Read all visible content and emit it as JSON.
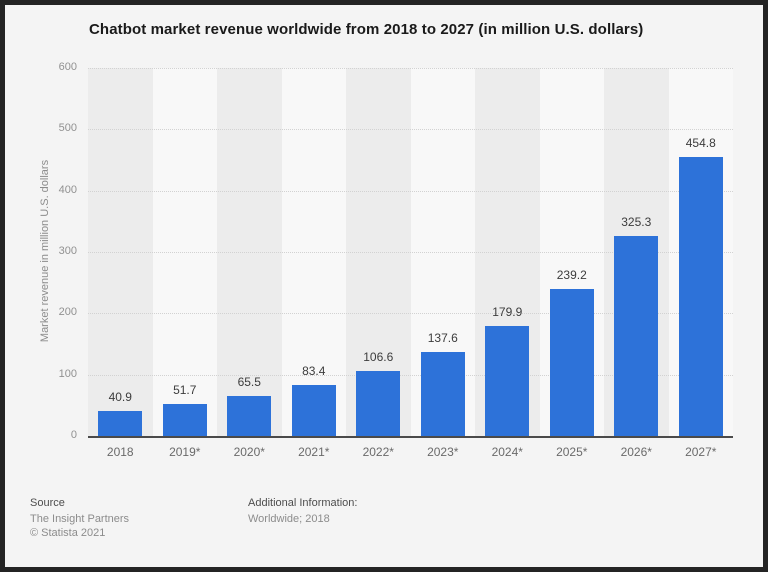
{
  "title": "Chatbot market revenue worldwide from 2018 to 2027 (in million U.S. dollars)",
  "chart_data": {
    "type": "bar",
    "title": "Chatbot market revenue worldwide from 2018 to 2027 (in million U.S. dollars)",
    "categories": [
      "2018",
      "2019*",
      "2020*",
      "2021*",
      "2022*",
      "2023*",
      "2024*",
      "2025*",
      "2026*",
      "2027*"
    ],
    "values": [
      40.9,
      51.7,
      65.5,
      83.4,
      106.6,
      137.6,
      179.9,
      239.2,
      325.3,
      454.8
    ],
    "xlabel": "",
    "ylabel": "Market revenue in million U.S. dollars",
    "ylim": [
      0,
      600
    ],
    "ytick_step": 100,
    "grid": "horizontal-dotted",
    "legend": "none",
    "bar_color": "#2d72d9",
    "band_colors": [
      "#ececec",
      "#f8f8f8"
    ],
    "axis_line_color": "#4a4a4a"
  },
  "footer": {
    "source_heading": "Source",
    "source_lines": [
      "The Insight Partners",
      "© Statista 2021"
    ],
    "additional_heading": "Additional Information:",
    "additional_lines": [
      "Worldwide; 2018"
    ]
  }
}
